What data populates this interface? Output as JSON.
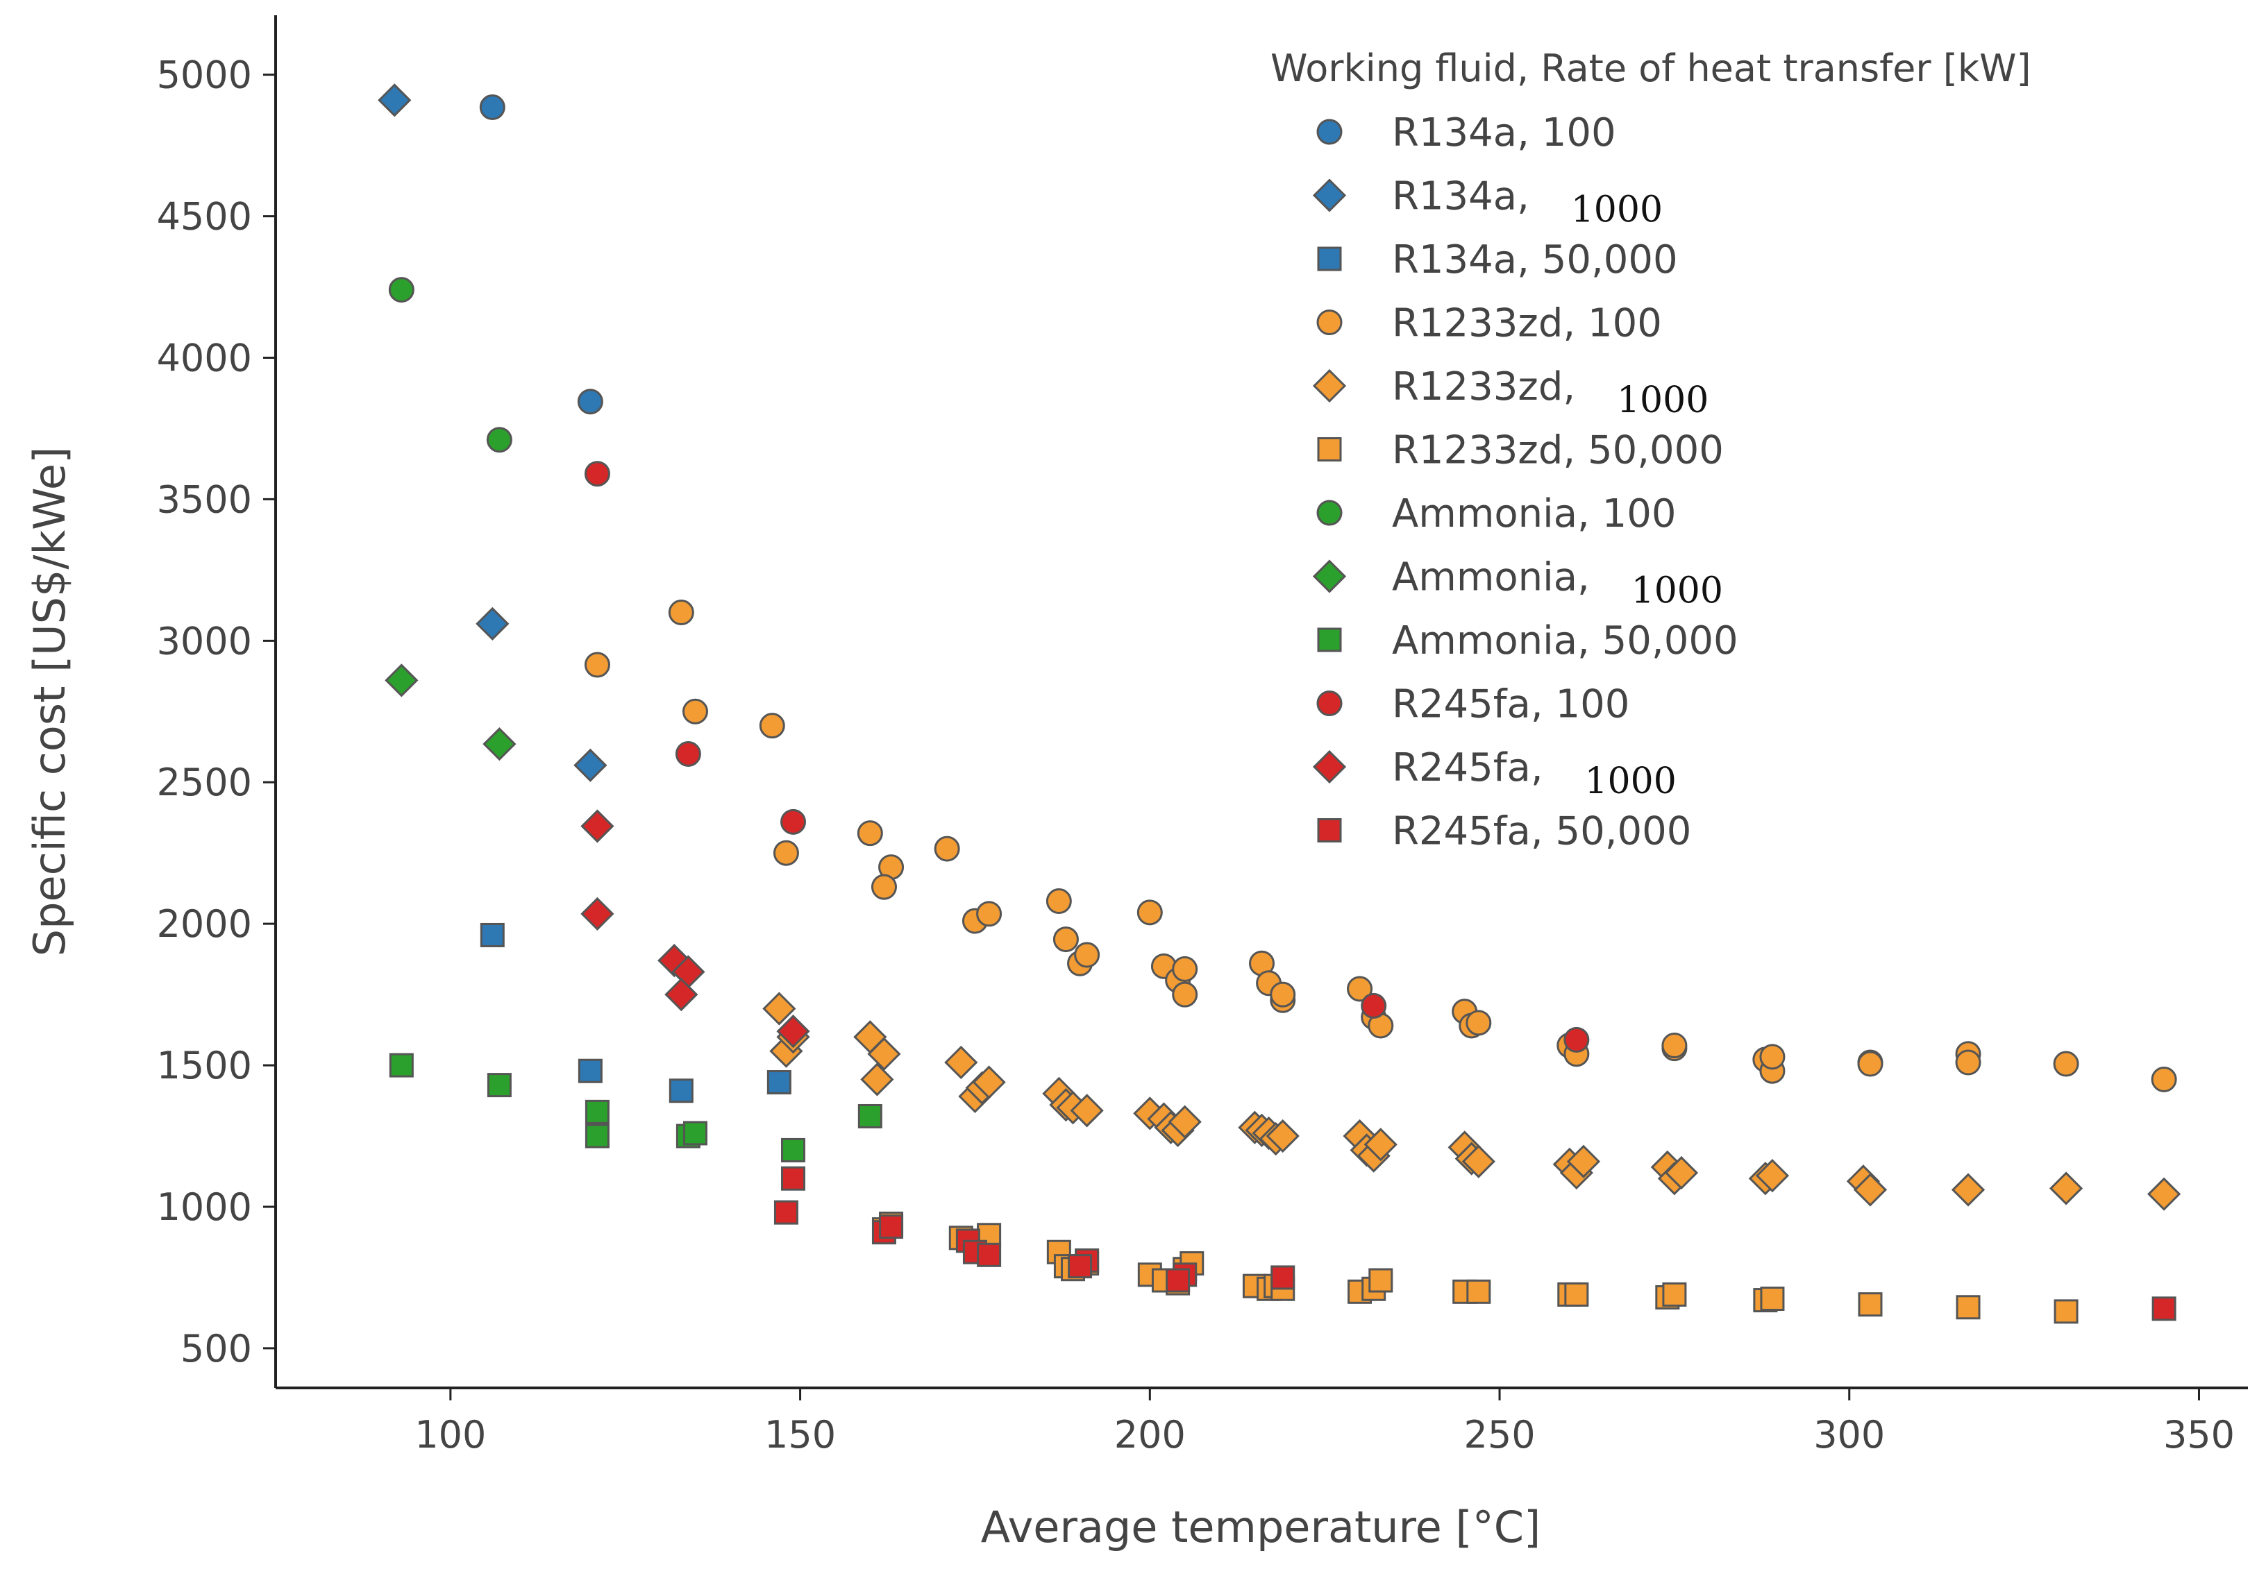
{
  "chart_data": {
    "type": "scatter",
    "xlabel": "Average temperature [°C]",
    "ylabel": "Specific cost [US$/kWe]",
    "xlim": [
      75,
      357
    ],
    "ylim": [
      360,
      5210
    ],
    "xticks": [
      "100",
      "150",
      "200",
      "250",
      "300",
      "350"
    ],
    "yticks": [
      "500",
      "1000",
      "1500",
      "2000",
      "2500",
      "3000",
      "3500",
      "4000",
      "4500",
      "5000"
    ],
    "legend": {
      "title": "Working fluid, Rate of heat transfer [kW]",
      "placement": "top-right"
    },
    "series": [
      {
        "name": "R134a",
        "rate": "100",
        "marker": "circle",
        "color": "#2e78b4",
        "points": [
          [
            106,
            4885
          ],
          [
            120,
            3845
          ]
        ]
      },
      {
        "name": "R134a",
        "rate": "1000",
        "marker": "diamond",
        "color": "#2e78b4",
        "points": [
          [
            92,
            4910
          ],
          [
            106,
            3060
          ],
          [
            120,
            2560
          ]
        ]
      },
      {
        "name": "R134a",
        "rate": "50,000",
        "marker": "square",
        "color": "#2e78b4",
        "points": [
          [
            106,
            1960
          ],
          [
            120,
            1480
          ],
          [
            133,
            1410
          ],
          [
            147,
            1440
          ]
        ]
      },
      {
        "name": "R1233zd",
        "rate": "100",
        "marker": "circle",
        "color": "#f39c34",
        "points": [
          [
            133,
            3100
          ],
          [
            121,
            2915
          ],
          [
            135,
            2750
          ],
          [
            146,
            2700
          ],
          [
            148,
            2250
          ],
          [
            160,
            2320
          ],
          [
            163,
            2200
          ],
          [
            162,
            2130
          ],
          [
            171,
            2265
          ],
          [
            175,
            2010
          ],
          [
            177,
            2035
          ],
          [
            187,
            2080
          ],
          [
            188,
            1945
          ],
          [
            190,
            1860
          ],
          [
            191,
            1890
          ],
          [
            200,
            2040
          ],
          [
            202,
            1850
          ],
          [
            204,
            1800
          ],
          [
            205,
            1750
          ],
          [
            205,
            1840
          ],
          [
            216,
            1860
          ],
          [
            217,
            1790
          ],
          [
            219,
            1730
          ],
          [
            219,
            1750
          ],
          [
            230,
            1770
          ],
          [
            232,
            1670
          ],
          [
            233,
            1640
          ],
          [
            245,
            1690
          ],
          [
            246,
            1640
          ],
          [
            247,
            1650
          ],
          [
            260,
            1570
          ],
          [
            261,
            1540
          ],
          [
            275,
            1560
          ],
          [
            275,
            1570
          ],
          [
            288,
            1520
          ],
          [
            289,
            1480
          ],
          [
            289,
            1530
          ],
          [
            303,
            1510
          ],
          [
            303,
            1505
          ],
          [
            317,
            1540
          ],
          [
            317,
            1510
          ],
          [
            331,
            1505
          ],
          [
            345,
            1450
          ]
        ]
      },
      {
        "name": "R1233zd",
        "rate": "1000",
        "marker": "diamond",
        "color": "#f39c34",
        "points": [
          [
            147,
            1700
          ],
          [
            148,
            1550
          ],
          [
            149,
            1600
          ],
          [
            160,
            1600
          ],
          [
            162,
            1540
          ],
          [
            161,
            1450
          ],
          [
            173,
            1510
          ],
          [
            175,
            1390
          ],
          [
            176,
            1420
          ],
          [
            177,
            1440
          ],
          [
            187,
            1400
          ],
          [
            188,
            1360
          ],
          [
            189,
            1350
          ],
          [
            191,
            1340
          ],
          [
            200,
            1330
          ],
          [
            202,
            1310
          ],
          [
            203,
            1280
          ],
          [
            204,
            1270
          ],
          [
            205,
            1300
          ],
          [
            215,
            1280
          ],
          [
            216,
            1270
          ],
          [
            217,
            1260
          ],
          [
            218,
            1240
          ],
          [
            219,
            1250
          ],
          [
            230,
            1250
          ],
          [
            231,
            1200
          ],
          [
            232,
            1180
          ],
          [
            233,
            1220
          ],
          [
            245,
            1210
          ],
          [
            246,
            1170
          ],
          [
            247,
            1160
          ],
          [
            260,
            1150
          ],
          [
            261,
            1120
          ],
          [
            262,
            1160
          ],
          [
            274,
            1140
          ],
          [
            275,
            1100
          ],
          [
            276,
            1120
          ],
          [
            288,
            1100
          ],
          [
            289,
            1110
          ],
          [
            302,
            1090
          ],
          [
            303,
            1060
          ],
          [
            317,
            1060
          ],
          [
            331,
            1065
          ],
          [
            345,
            1045
          ]
        ]
      },
      {
        "name": "R1233zd",
        "rate": "50,000",
        "marker": "square",
        "color": "#f39c34",
        "points": [
          [
            162,
            920
          ],
          [
            163,
            940
          ],
          [
            173,
            890
          ],
          [
            176,
            860
          ],
          [
            177,
            900
          ],
          [
            187,
            840
          ],
          [
            188,
            790
          ],
          [
            189,
            780
          ],
          [
            191,
            800
          ],
          [
            200,
            760
          ],
          [
            202,
            740
          ],
          [
            204,
            730
          ],
          [
            205,
            780
          ],
          [
            206,
            800
          ],
          [
            215,
            720
          ],
          [
            217,
            710
          ],
          [
            218,
            720
          ],
          [
            219,
            710
          ],
          [
            230,
            700
          ],
          [
            232,
            710
          ],
          [
            233,
            740
          ],
          [
            245,
            700
          ],
          [
            247,
            700
          ],
          [
            260,
            690
          ],
          [
            261,
            690
          ],
          [
            274,
            680
          ],
          [
            275,
            690
          ],
          [
            288,
            670
          ],
          [
            289,
            675
          ],
          [
            303,
            655
          ],
          [
            317,
            645
          ],
          [
            331,
            630
          ]
        ]
      },
      {
        "name": "Ammonia",
        "rate": "100",
        "marker": "circle",
        "color": "#2ca02c",
        "points": [
          [
            93,
            4240
          ],
          [
            107,
            3710
          ]
        ]
      },
      {
        "name": "Ammonia",
        "rate": "1000",
        "marker": "diamond",
        "color": "#2ca02c",
        "points": [
          [
            93,
            2860
          ],
          [
            107,
            2635
          ]
        ]
      },
      {
        "name": "Ammonia",
        "rate": "50,000",
        "marker": "square",
        "color": "#2ca02c",
        "points": [
          [
            93,
            1500
          ],
          [
            107,
            1430
          ],
          [
            121,
            1335
          ],
          [
            121,
            1250
          ],
          [
            134,
            1250
          ],
          [
            135,
            1260
          ],
          [
            149,
            1200
          ],
          [
            160,
            1320
          ]
        ]
      },
      {
        "name": "R245fa",
        "rate": "100",
        "marker": "circle",
        "color": "#d62728",
        "points": [
          [
            121,
            3590
          ],
          [
            134,
            2600
          ],
          [
            149,
            2360
          ],
          [
            232,
            1710
          ],
          [
            261,
            1590
          ]
        ]
      },
      {
        "name": "R245fa",
        "rate": "1000",
        "marker": "diamond",
        "color": "#d62728",
        "points": [
          [
            121,
            2345
          ],
          [
            121,
            2035
          ],
          [
            132,
            1870
          ],
          [
            134,
            1830
          ],
          [
            133,
            1750
          ],
          [
            149,
            1620
          ]
        ]
      },
      {
        "name": "R245fa",
        "rate": "50,000",
        "marker": "square",
        "color": "#d62728",
        "points": [
          [
            149,
            1100
          ],
          [
            148,
            980
          ],
          [
            162,
            910
          ],
          [
            163,
            930
          ],
          [
            174,
            880
          ],
          [
            175,
            840
          ],
          [
            177,
            830
          ],
          [
            191,
            810
          ],
          [
            190,
            790
          ],
          [
            205,
            760
          ],
          [
            204,
            740
          ],
          [
            219,
            750
          ],
          [
            345,
            640
          ]
        ]
      }
    ]
  }
}
